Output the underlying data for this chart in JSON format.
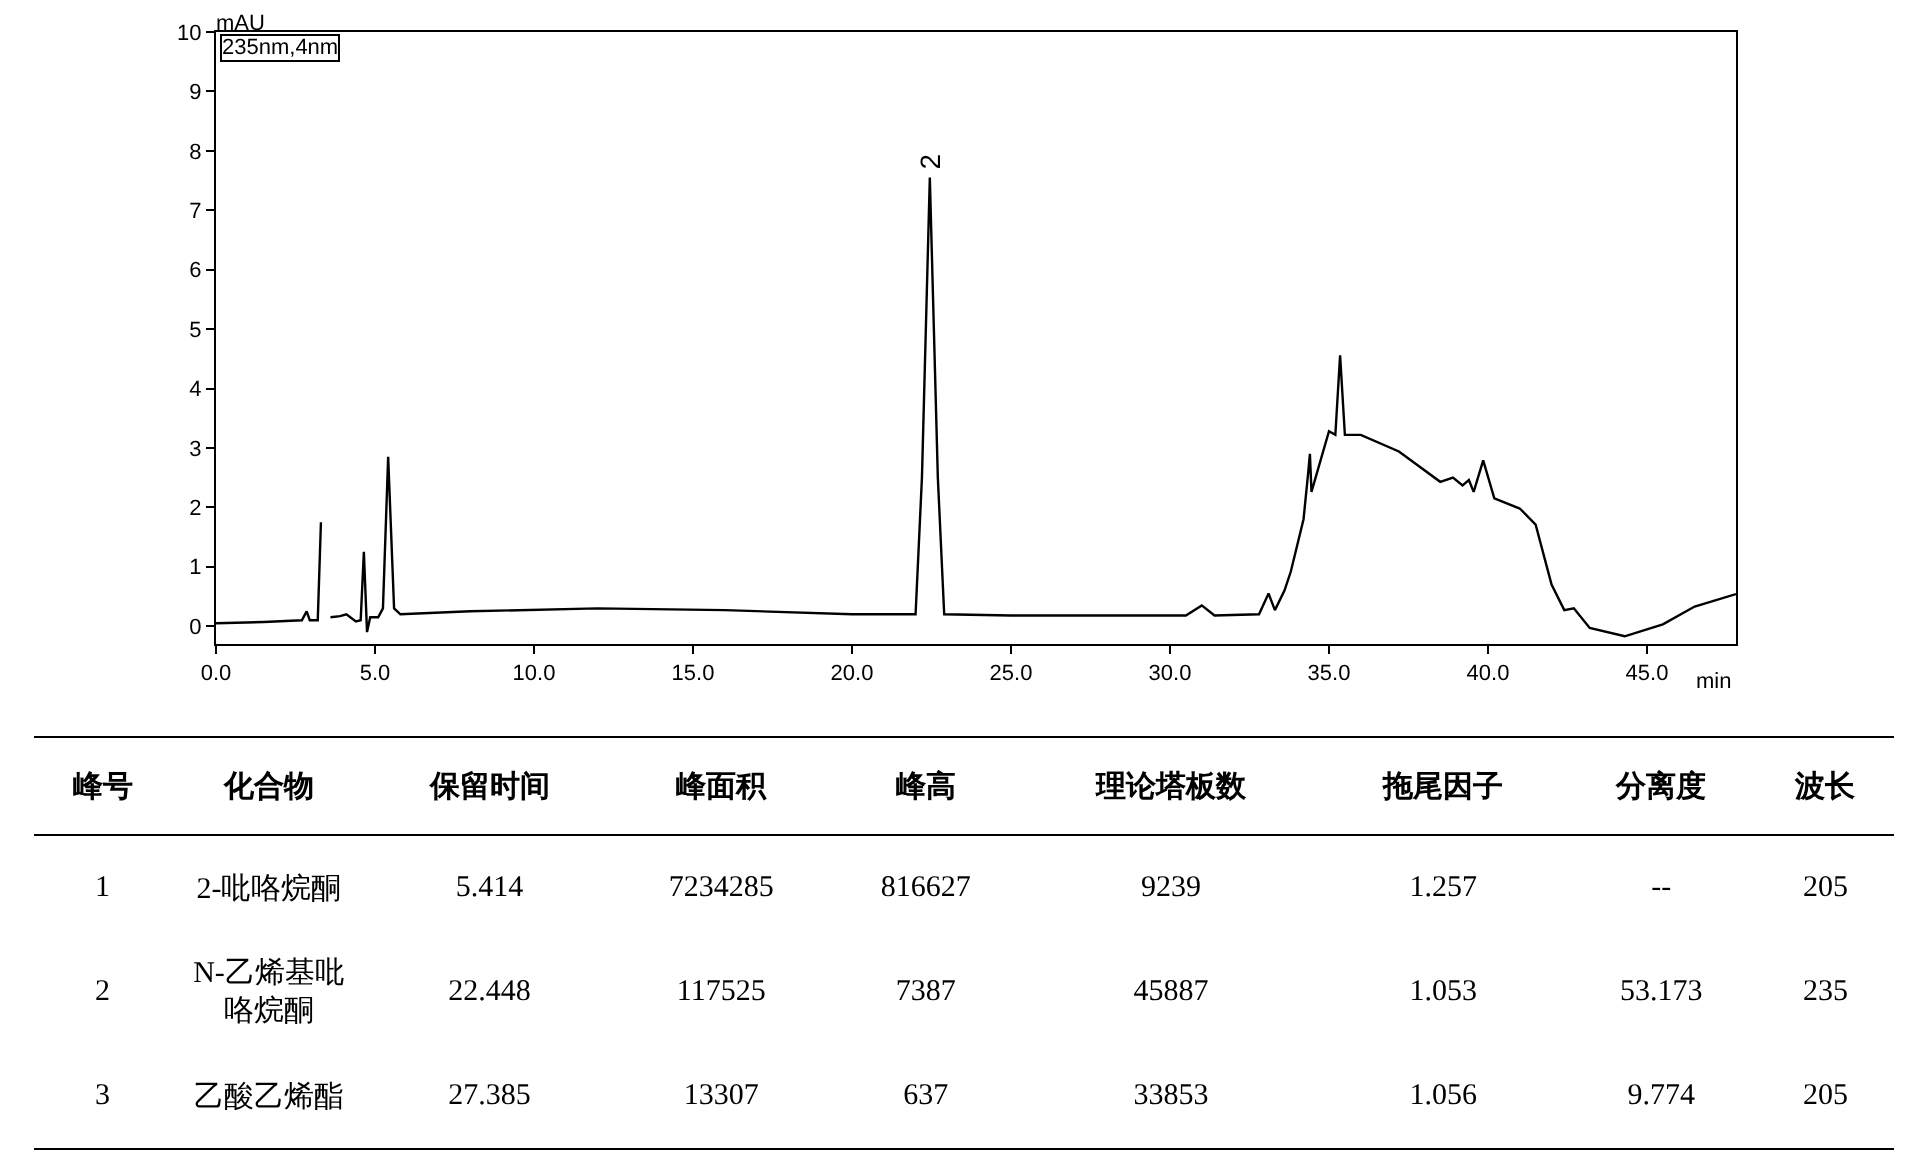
{
  "chart_data": [
    {
      "type": "line",
      "xlabel": "min",
      "ylabel": "mAU",
      "grid": false,
      "marker": "none",
      "line_style": "solid",
      "xlim": [
        0,
        47.8
      ],
      "ylim": [
        -0.3,
        10
      ],
      "xticks": [
        {
          "value": 0,
          "label": "0.0"
        },
        {
          "value": 5,
          "label": "5.0"
        },
        {
          "value": 10,
          "label": "10.0"
        },
        {
          "value": 15,
          "label": "15.0"
        },
        {
          "value": 20,
          "label": "20.0"
        },
        {
          "value": 25,
          "label": "25.0"
        },
        {
          "value": 30,
          "label": "30.0"
        },
        {
          "value": 35,
          "label": "35.0"
        },
        {
          "value": 40,
          "label": "40.0"
        },
        {
          "value": 45,
          "label": "45.0"
        }
      ],
      "yticks": [
        0,
        1,
        2,
        3,
        4,
        5,
        6,
        7,
        8,
        9,
        10
      ],
      "annotations": [
        "235nm,4nm",
        {
          "text": "2",
          "x": 22.448,
          "y": 7.55
        }
      ],
      "x": [
        0,
        1.5,
        2.7,
        2.85,
        2.95,
        3.2,
        3.3,
        3.4,
        3.5,
        3.6,
        3.9,
        4.1,
        4.4,
        4.55,
        4.65,
        4.75,
        4.85,
        5.1,
        5.25,
        5.414,
        5.6,
        5.8,
        8,
        12,
        16,
        20,
        22.0,
        22.2,
        22.448,
        22.7,
        22.9,
        25,
        30.5,
        31.0,
        31.4,
        32.8,
        33.1,
        33.3,
        33.6,
        33.8,
        34.2,
        34.35,
        34.4,
        34.45,
        35.0,
        35.2,
        35.35,
        35.5,
        36,
        37.2,
        38.5,
        38.9,
        39.2,
        39.4,
        39.55,
        39.85,
        40.2,
        41,
        41.5,
        42.0,
        42.4,
        42.7,
        43.2,
        44.3,
        45.5,
        46.5,
        47.8
      ],
      "series": [
        {
          "color": "#000000",
          "values": [
            0.05,
            0.07,
            0.1,
            0.25,
            0.1,
            0.1,
            1.75,
            null,
            null,
            0.15,
            0.17,
            0.2,
            0.08,
            0.1,
            1.25,
            -0.1,
            0.15,
            0.15,
            0.3,
            2.85,
            0.3,
            0.2,
            0.25,
            0.3,
            0.27,
            0.2,
            0.2,
            2.5,
            7.55,
            2.5,
            0.2,
            0.18,
            0.18,
            0.35,
            0.18,
            0.2,
            0.55,
            0.27,
            0.6,
            0.92,
            1.8,
            2.6,
            2.9,
            2.26,
            3.28,
            3.22,
            4.56,
            3.22,
            3.22,
            2.94,
            2.43,
            2.5,
            2.37,
            2.46,
            2.26,
            2.79,
            2.15,
            1.98,
            1.71,
            0.7,
            0.27,
            0.3,
            -0.03,
            -0.17,
            0.03,
            0.33,
            0.54
          ]
        }
      ]
    },
    {
      "type": "other",
      "categories": [
        "峰号",
        "化合物",
        "保留时间",
        "峰面积",
        "峰高",
        "理论塔板数",
        "拖尾因子",
        "分离度",
        "波长"
      ],
      "cell_labels": [
        [
          "1",
          "2-吡咯烷酮",
          "5.414",
          "7234285",
          "816627",
          "9239",
          "1.257",
          "--",
          "205"
        ],
        [
          "2",
          "N-乙烯基吡咯烷酮",
          "22.448",
          "117525",
          "7387",
          "45887",
          "1.053",
          "53.173",
          "235"
        ],
        [
          "3",
          "乙酸乙烯酯",
          "27.385",
          "13307",
          "637",
          "33853",
          "1.056",
          "9.774",
          "205"
        ]
      ]
    }
  ]
}
